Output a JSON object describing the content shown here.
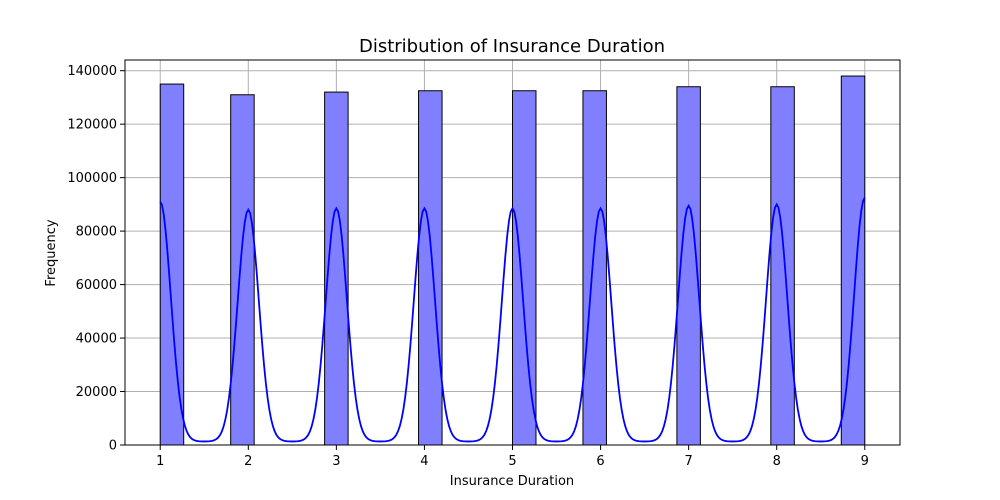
{
  "chart_data": {
    "type": "bar",
    "title": "Distribution of Insurance Duration",
    "xlabel": "Insurance Duration",
    "ylabel": "Frequency",
    "xlim": [
      0.6,
      9.4
    ],
    "ylim": [
      0,
      144000
    ],
    "xticks": [
      "1",
      "2",
      "3",
      "4",
      "5",
      "6",
      "7",
      "8",
      "9"
    ],
    "yticks": [
      "0",
      "20000",
      "40000",
      "60000",
      "80000",
      "100000",
      "120000",
      "140000"
    ],
    "grid": true,
    "bars": [
      {
        "x": 1,
        "value": 135000
      },
      {
        "x": 2,
        "value": 131000
      },
      {
        "x": 3,
        "value": 132000
      },
      {
        "x": 4,
        "value": 132500
      },
      {
        "x": 5,
        "value": 132500
      },
      {
        "x": 6,
        "value": 132500
      },
      {
        "x": 7,
        "value": 134000
      },
      {
        "x": 8,
        "value": 134000
      },
      {
        "x": 9,
        "value": 138000
      }
    ],
    "kde_peaks": [
      {
        "x": 1,
        "value": 91000
      },
      {
        "x": 2,
        "value": 88000
      },
      {
        "x": 3,
        "value": 88500
      },
      {
        "x": 4,
        "value": 88500
      },
      {
        "x": 5,
        "value": 88500
      },
      {
        "x": 6,
        "value": 88500
      },
      {
        "x": 7,
        "value": 89500
      },
      {
        "x": 8,
        "value": 90000
      },
      {
        "x": 9,
        "value": 92500
      }
    ],
    "kde_trough": 1300,
    "colors": {
      "bar_fill": "#8080ff",
      "bar_edge": "#000000",
      "kde_line": "#0000ff",
      "grid": "#b0b0b0"
    }
  }
}
